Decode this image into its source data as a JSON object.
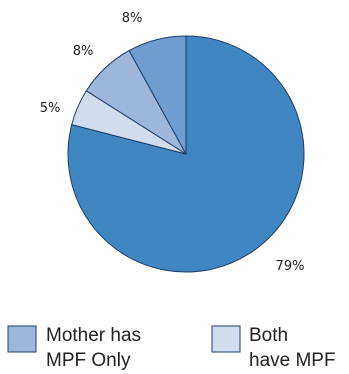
{
  "chart_data": {
    "type": "pie",
    "slices": [
      {
        "label": "79%",
        "value": 79,
        "color": "#3f86c3"
      },
      {
        "label": "5%",
        "value": 5,
        "color": "#d1dcef"
      },
      {
        "label": "8%",
        "value": 8,
        "color": "#9db7dc"
      },
      {
        "label": "8%",
        "value": 8,
        "color": "#6f9dd0"
      }
    ],
    "start_angle_deg": 0,
    "direction": "clockwise",
    "legend": {
      "placement": "bottom",
      "entries": [
        {
          "lines": [
            "Mother has",
            "MPF Only"
          ],
          "color": "#9db7dc"
        },
        {
          "lines": [
            "Both",
            "have MPF"
          ],
          "color": "#d1dcef"
        }
      ]
    }
  }
}
